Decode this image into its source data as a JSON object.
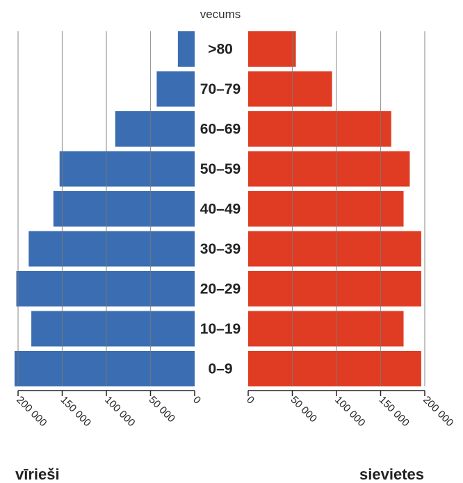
{
  "chart_data": {
    "type": "bar",
    "subtype": "population-pyramid",
    "categories": [
      ">80",
      "70–79",
      "60–69",
      "50–59",
      "40–49",
      "30–39",
      "20–29",
      "10–19",
      "0–9"
    ],
    "category_axis_title": "vecums",
    "series": [
      {
        "name": "vīrieši",
        "color": "#3b6db3",
        "values": [
          19000,
          43000,
          90000,
          153000,
          160000,
          188000,
          202000,
          185000,
          204000
        ]
      },
      {
        "name": "sievietes",
        "color": "#e03c24",
        "values": [
          54000,
          95000,
          162000,
          183000,
          176000,
          196000,
          196000,
          176000,
          196000
        ]
      }
    ],
    "left_ticks": [
      "200 000",
      "150 000",
      "100 000",
      "50 000",
      "0"
    ],
    "right_ticks": [
      "0",
      "50 000",
      "100 000",
      "150 000",
      "200 000"
    ],
    "xlim": [
      0,
      200000
    ],
    "grid": true
  }
}
